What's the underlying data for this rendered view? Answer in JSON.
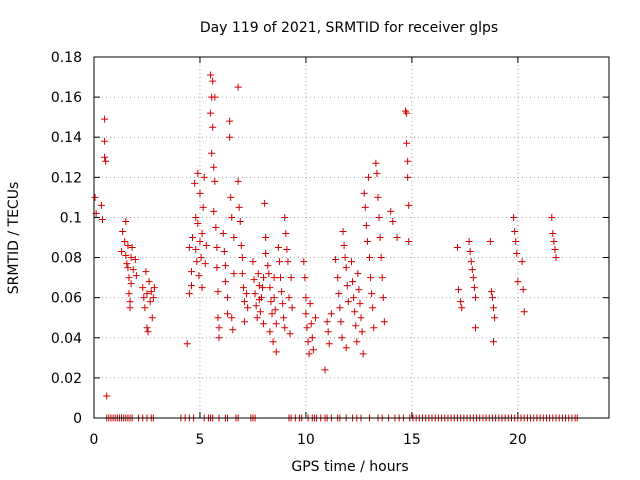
{
  "chart_data": {
    "type": "scatter",
    "title": "Day 119 of 2021, SRMTID for receiver glps",
    "xlabel": "GPS time / hours",
    "ylabel": "SRMTID / TECUs",
    "xlim": [
      0,
      24.3
    ],
    "ylim": [
      0,
      0.18
    ],
    "xticks": [
      "0",
      "5",
      "10",
      "15",
      "20"
    ],
    "yticks": [
      "0",
      "0.02",
      "0.04",
      "0.06",
      "0.08",
      "0.1",
      "0.12",
      "0.14",
      "0.16",
      "0.18"
    ],
    "grid": true,
    "marker": "plus",
    "color": "#d40000",
    "series": [
      {
        "values": [
          [
            0.05,
            0.11
          ],
          [
            0.1,
            0.102
          ],
          [
            0.35,
            0.106
          ],
          [
            0.4,
            0.099
          ],
          [
            0.5,
            0.149
          ],
          [
            0.5,
            0.138
          ],
          [
            0.5,
            0.13
          ],
          [
            0.55,
            0.128
          ],
          [
            0.6,
            0.011
          ],
          [
            1.3,
            0.083
          ],
          [
            1.35,
            0.093
          ],
          [
            1.45,
            0.088
          ],
          [
            1.5,
            0.098
          ],
          [
            1.5,
            0.081
          ],
          [
            1.55,
            0.077
          ],
          [
            1.6,
            0.086
          ],
          [
            1.6,
            0.075
          ],
          [
            1.65,
            0.07
          ],
          [
            1.65,
            0.062
          ],
          [
            1.7,
            0.058
          ],
          [
            1.7,
            0.055
          ],
          [
            1.75,
            0.067
          ],
          [
            1.75,
            0.08
          ],
          [
            1.8,
            0.085
          ],
          [
            1.85,
            0.074
          ],
          [
            1.95,
            0.079
          ],
          [
            2.0,
            0.071
          ],
          [
            2.3,
            0.065
          ],
          [
            2.35,
            0.06
          ],
          [
            2.4,
            0.055
          ],
          [
            2.45,
            0.073
          ],
          [
            2.5,
            0.062
          ],
          [
            2.5,
            0.045
          ],
          [
            2.55,
            0.043
          ],
          [
            2.6,
            0.068
          ],
          [
            2.65,
            0.058
          ],
          [
            2.7,
            0.063
          ],
          [
            2.75,
            0.05
          ],
          [
            2.8,
            0.06
          ],
          [
            2.85,
            0.065
          ],
          [
            4.4,
            0.037
          ],
          [
            4.5,
            0.062
          ],
          [
            4.5,
            0.085
          ],
          [
            4.6,
            0.073
          ],
          [
            4.6,
            0.066
          ],
          [
            4.65,
            0.09
          ],
          [
            4.75,
            0.117
          ],
          [
            4.8,
            0.1
          ],
          [
            4.8,
            0.084
          ],
          [
            4.85,
            0.078
          ],
          [
            4.9,
            0.122
          ],
          [
            4.9,
            0.097
          ],
          [
            4.95,
            0.071
          ],
          [
            5.0,
            0.088
          ],
          [
            5.0,
            0.112
          ],
          [
            5.05,
            0.08
          ],
          [
            5.1,
            0.092
          ],
          [
            5.1,
            0.065
          ],
          [
            5.15,
            0.105
          ],
          [
            5.2,
            0.12
          ],
          [
            5.25,
            0.077
          ],
          [
            5.3,
            0.086
          ],
          [
            5.5,
            0.171
          ],
          [
            5.5,
            0.152
          ],
          [
            5.55,
            0.16
          ],
          [
            5.55,
            0.132
          ],
          [
            5.6,
            0.168
          ],
          [
            5.6,
            0.145
          ],
          [
            5.65,
            0.125
          ],
          [
            5.65,
            0.103
          ],
          [
            5.7,
            0.16
          ],
          [
            5.7,
            0.118
          ],
          [
            5.75,
            0.095
          ],
          [
            5.8,
            0.085
          ],
          [
            5.8,
            0.075
          ],
          [
            5.85,
            0.063
          ],
          [
            5.85,
            0.05
          ],
          [
            5.9,
            0.045
          ],
          [
            5.9,
            0.04
          ],
          [
            6.1,
            0.092
          ],
          [
            6.15,
            0.083
          ],
          [
            6.2,
            0.076
          ],
          [
            6.2,
            0.068
          ],
          [
            6.3,
            0.06
          ],
          [
            6.3,
            0.052
          ],
          [
            6.4,
            0.148
          ],
          [
            6.4,
            0.14
          ],
          [
            6.45,
            0.11
          ],
          [
            6.5,
            0.1
          ],
          [
            6.5,
            0.05
          ],
          [
            6.55,
            0.044
          ],
          [
            6.6,
            0.09
          ],
          [
            6.6,
            0.072
          ],
          [
            6.8,
            0.165
          ],
          [
            6.8,
            0.118
          ],
          [
            6.85,
            0.105
          ],
          [
            6.9,
            0.098
          ],
          [
            6.95,
            0.086
          ],
          [
            7.0,
            0.08
          ],
          [
            7.0,
            0.072
          ],
          [
            7.05,
            0.065
          ],
          [
            7.1,
            0.058
          ],
          [
            7.1,
            0.048
          ],
          [
            7.2,
            0.062
          ],
          [
            7.25,
            0.055
          ],
          [
            7.5,
            0.078
          ],
          [
            7.55,
            0.069
          ],
          [
            7.6,
            0.062
          ],
          [
            7.65,
            0.056
          ],
          [
            7.7,
            0.05
          ],
          [
            7.75,
            0.072
          ],
          [
            7.8,
            0.066
          ],
          [
            7.8,
            0.059
          ],
          [
            7.85,
            0.053
          ],
          [
            7.9,
            0.06
          ],
          [
            7.95,
            0.065
          ],
          [
            8.0,
            0.07
          ],
          [
            8.0,
            0.047
          ],
          [
            8.05,
            0.107
          ],
          [
            8.1,
            0.09
          ],
          [
            8.1,
            0.082
          ],
          [
            8.2,
            0.076
          ],
          [
            8.25,
            0.072
          ],
          [
            8.3,
            0.065
          ],
          [
            8.3,
            0.043
          ],
          [
            8.35,
            0.058
          ],
          [
            8.4,
            0.052
          ],
          [
            8.45,
            0.038
          ],
          [
            8.5,
            0.07
          ],
          [
            8.5,
            0.06
          ],
          [
            8.55,
            0.054
          ],
          [
            8.6,
            0.047
          ],
          [
            8.6,
            0.033
          ],
          [
            8.7,
            0.085
          ],
          [
            8.75,
            0.078
          ],
          [
            8.8,
            0.07
          ],
          [
            8.85,
            0.063
          ],
          [
            8.9,
            0.057
          ],
          [
            8.95,
            0.05
          ],
          [
            9.0,
            0.045
          ],
          [
            9.0,
            0.1
          ],
          [
            9.05,
            0.092
          ],
          [
            9.1,
            0.084
          ],
          [
            9.15,
            0.078
          ],
          [
            9.2,
            0.06
          ],
          [
            9.25,
            0.042
          ],
          [
            9.3,
            0.07
          ],
          [
            9.35,
            0.055
          ],
          [
            9.9,
            0.078
          ],
          [
            9.95,
            0.07
          ],
          [
            10.0,
            0.06
          ],
          [
            10.0,
            0.052
          ],
          [
            10.05,
            0.045
          ],
          [
            10.1,
            0.038
          ],
          [
            10.15,
            0.032
          ],
          [
            10.2,
            0.057
          ],
          [
            10.25,
            0.047
          ],
          [
            10.3,
            0.04
          ],
          [
            10.35,
            0.034
          ],
          [
            10.45,
            0.05
          ],
          [
            10.9,
            0.024
          ],
          [
            11.0,
            0.048
          ],
          [
            11.05,
            0.043
          ],
          [
            11.1,
            0.037
          ],
          [
            11.2,
            0.052
          ],
          [
            11.4,
            0.079
          ],
          [
            11.5,
            0.07
          ],
          [
            11.55,
            0.062
          ],
          [
            11.6,
            0.055
          ],
          [
            11.65,
            0.048
          ],
          [
            11.7,
            0.04
          ],
          [
            11.75,
            0.093
          ],
          [
            11.8,
            0.086
          ],
          [
            11.85,
            0.08
          ],
          [
            11.9,
            0.075
          ],
          [
            11.9,
            0.035
          ],
          [
            11.95,
            0.066
          ],
          [
            12.0,
            0.058
          ],
          [
            12.15,
            0.078
          ],
          [
            12.2,
            0.068
          ],
          [
            12.25,
            0.06
          ],
          [
            12.3,
            0.053
          ],
          [
            12.35,
            0.046
          ],
          [
            12.4,
            0.038
          ],
          [
            12.45,
            0.072
          ],
          [
            12.5,
            0.064
          ],
          [
            12.55,
            0.057
          ],
          [
            12.6,
            0.05
          ],
          [
            12.65,
            0.043
          ],
          [
            12.7,
            0.032
          ],
          [
            12.75,
            0.112
          ],
          [
            12.8,
            0.105
          ],
          [
            12.85,
            0.096
          ],
          [
            12.9,
            0.088
          ],
          [
            12.95,
            0.12
          ],
          [
            13.0,
            0.08
          ],
          [
            13.05,
            0.07
          ],
          [
            13.1,
            0.062
          ],
          [
            13.15,
            0.055
          ],
          [
            13.2,
            0.045
          ],
          [
            13.3,
            0.127
          ],
          [
            13.35,
            0.122
          ],
          [
            13.4,
            0.11
          ],
          [
            13.45,
            0.1
          ],
          [
            13.5,
            0.09
          ],
          [
            13.55,
            0.08
          ],
          [
            13.6,
            0.07
          ],
          [
            13.65,
            0.06
          ],
          [
            13.7,
            0.048
          ],
          [
            14.0,
            0.103
          ],
          [
            14.1,
            0.098
          ],
          [
            14.3,
            0.09
          ],
          [
            14.7,
            0.153
          ],
          [
            14.75,
            0.152
          ],
          [
            14.75,
            0.137
          ],
          [
            14.8,
            0.128
          ],
          [
            14.8,
            0.12
          ],
          [
            14.85,
            0.106
          ],
          [
            14.85,
            0.088
          ],
          [
            17.15,
            0.085
          ],
          [
            17.2,
            0.064
          ],
          [
            17.3,
            0.058
          ],
          [
            17.35,
            0.055
          ],
          [
            17.7,
            0.088
          ],
          [
            17.75,
            0.083
          ],
          [
            17.8,
            0.078
          ],
          [
            17.85,
            0.074
          ],
          [
            17.9,
            0.07
          ],
          [
            17.95,
            0.065
          ],
          [
            18.0,
            0.06
          ],
          [
            18.0,
            0.045
          ],
          [
            18.7,
            0.088
          ],
          [
            18.75,
            0.063
          ],
          [
            18.8,
            0.06
          ],
          [
            18.85,
            0.055
          ],
          [
            18.9,
            0.05
          ],
          [
            18.85,
            0.038
          ],
          [
            19.8,
            0.1
          ],
          [
            19.85,
            0.093
          ],
          [
            19.9,
            0.088
          ],
          [
            19.95,
            0.082
          ],
          [
            20.0,
            0.068
          ],
          [
            20.2,
            0.078
          ],
          [
            20.25,
            0.064
          ],
          [
            20.3,
            0.053
          ],
          [
            21.6,
            0.1
          ],
          [
            21.65,
            0.092
          ],
          [
            21.7,
            0.088
          ],
          [
            21.75,
            0.084
          ],
          [
            21.8,
            0.08
          ]
        ]
      }
    ],
    "zero_points_x": [
      0.6,
      0.7,
      0.8,
      0.9,
      1.0,
      1.1,
      1.2,
      1.3,
      1.4,
      1.5,
      1.6,
      1.7,
      1.8,
      2.1,
      2.3,
      2.5,
      2.7,
      2.8,
      4.1,
      4.3,
      4.5,
      4.7,
      5.2,
      5.4,
      5.5,
      5.6,
      5.9,
      6.2,
      6.3,
      6.7,
      6.8,
      7.4,
      7.5,
      7.6,
      9.2,
      9.3,
      9.5,
      9.7,
      9.8,
      10.1,
      10.3,
      10.4,
      10.5,
      10.7,
      10.9,
      11.0,
      11.2,
      11.5,
      11.6,
      11.9,
      12.2,
      12.4,
      12.6,
      13.0,
      13.4,
      13.6,
      13.9,
      14.2,
      14.4,
      14.6,
      14.9,
      15.05,
      15.2,
      15.35,
      15.5,
      15.65,
      15.8,
      15.95,
      16.1,
      16.25,
      16.4,
      16.55,
      16.7,
      16.85,
      17.0,
      17.15,
      17.3,
      17.45,
      17.6,
      17.75,
      17.9,
      18.05,
      18.2,
      18.35,
      18.5,
      18.65,
      18.8,
      18.95,
      19.1,
      19.25,
      19.4,
      19.55,
      19.7,
      19.85,
      20.0,
      20.15,
      20.3,
      20.45,
      20.6,
      20.75,
      20.9,
      21.05,
      21.2,
      21.35,
      21.5,
      21.65,
      21.8,
      21.95,
      22.1,
      22.25,
      22.4,
      22.55,
      22.7,
      22.8
    ]
  }
}
